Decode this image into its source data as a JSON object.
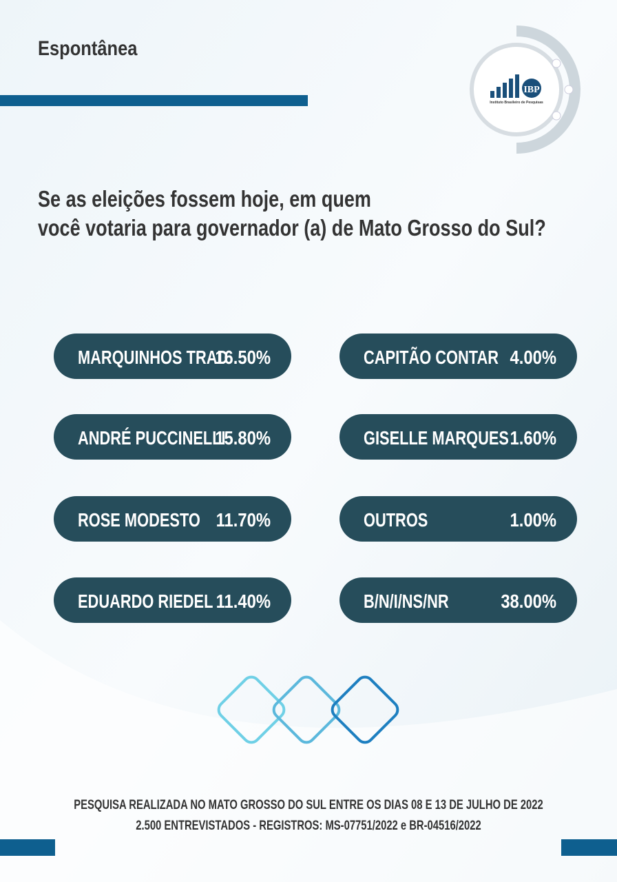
{
  "header": {
    "title": "Espontânea",
    "logo_text": "IBP",
    "logo_subtitle": "Instituto Brasileiro de Pesquisas"
  },
  "question": {
    "lines": [
      "Se as eleições fossem hoje, em quem",
      "você votaria para governador (a) de Mato Grosso do Sul?"
    ]
  },
  "results": {
    "left": [
      {
        "name": "MARQUINHOS TRAD",
        "value": "16.50%"
      },
      {
        "name": "ANDRÉ PUCCINELLI",
        "value": "15.80%"
      },
      {
        "name": "ROSE MODESTO",
        "value": "11.70%"
      },
      {
        "name": "EDUARDO RIEDEL",
        "value": "11.40%"
      }
    ],
    "right": [
      {
        "name": "CAPITÃO CONTAR",
        "value": "4.00%"
      },
      {
        "name": "GISELLE MARQUES",
        "value": "1.60%"
      },
      {
        "name": "OUTROS",
        "value": "1.00%"
      },
      {
        "name": "B/N/I/NS/NR",
        "value": "38.00%"
      }
    ]
  },
  "footer": {
    "lines": [
      "PESQUISA REALIZADA NO MATO GROSSO DO SUL ENTRE OS DIAS 08 E 13 DE JULHO DE 2022",
      "2.500 ENTREVISTADOS - REGISTROS: MS-07751/2022 e BR-04516/2022"
    ]
  }
}
